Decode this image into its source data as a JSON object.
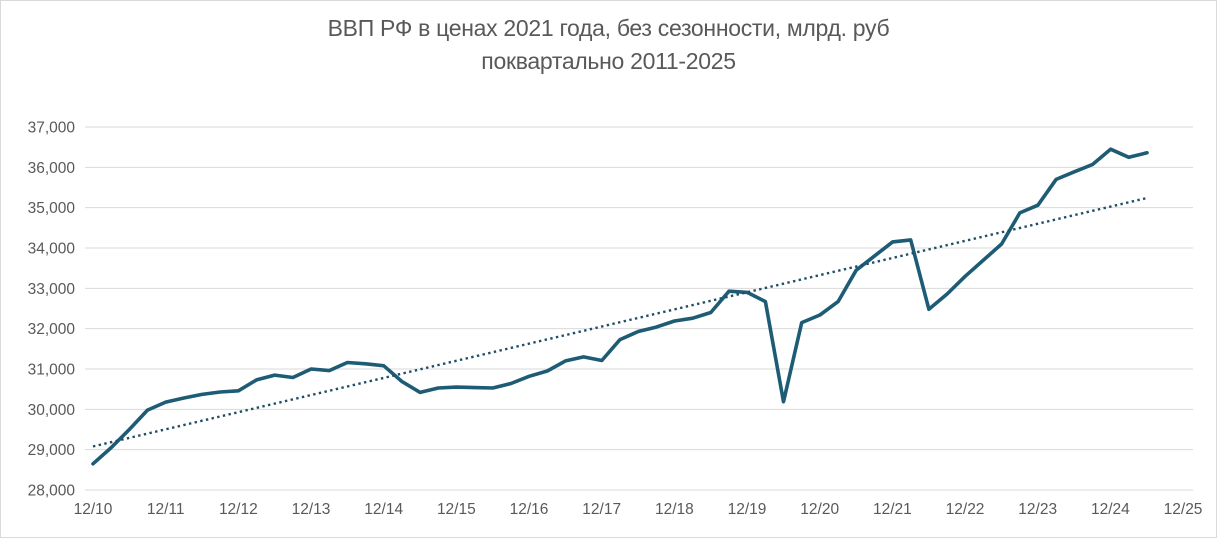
{
  "title": {
    "line1": "ВВП РФ в ценах 2021 года, без сезонности, млрд. руб",
    "line2": "поквартально 2011-2025"
  },
  "chart_data": {
    "type": "line",
    "series_name": "ВВП РФ, млрд. руб. в ценах 2021 года, без сезонности",
    "quarters": [
      "12/10",
      "03/11",
      "06/11",
      "09/11",
      "12/11",
      "03/12",
      "06/12",
      "09/12",
      "12/12",
      "03/13",
      "06/13",
      "09/13",
      "12/13",
      "03/14",
      "06/14",
      "09/14",
      "12/14",
      "03/15",
      "06/15",
      "09/15",
      "12/15",
      "03/16",
      "06/16",
      "09/16",
      "12/16",
      "03/17",
      "06/17",
      "09/17",
      "12/17",
      "03/18",
      "06/18",
      "09/18",
      "12/18",
      "03/19",
      "06/19",
      "09/19",
      "12/19",
      "03/20",
      "06/20",
      "09/20",
      "12/20",
      "03/21",
      "06/21",
      "09/21",
      "12/21",
      "03/22",
      "06/22",
      "09/22",
      "12/22",
      "03/23",
      "06/23",
      "09/23",
      "12/23",
      "03/24",
      "06/24",
      "09/24",
      "12/24",
      "03/25",
      "06/25"
    ],
    "values": [
      28650,
      29050,
      29500,
      29980,
      30180,
      30280,
      30370,
      30430,
      30460,
      30730,
      30850,
      30790,
      31000,
      30960,
      31160,
      31130,
      31080,
      30690,
      30420,
      30530,
      30550,
      30540,
      30530,
      30640,
      30820,
      30950,
      31200,
      31300,
      31210,
      31730,
      31930,
      32040,
      32190,
      32260,
      32400,
      32930,
      32900,
      32670,
      30190,
      32150,
      32340,
      32670,
      33450,
      33800,
      34150,
      34200,
      32480,
      32860,
      33300,
      33700,
      34100,
      34870,
      35060,
      35700,
      35890,
      36070,
      36450,
      36250,
      36360
    ],
    "trendline": {
      "type": "linear",
      "style": "dotted",
      "start_value": 29080,
      "end_value": 35240
    },
    "x_tick_labels": [
      "12/10",
      "12/11",
      "12/12",
      "12/13",
      "12/14",
      "12/15",
      "12/16",
      "12/17",
      "12/18",
      "12/19",
      "12/20",
      "12/21",
      "12/22",
      "12/23",
      "12/24",
      "12/25"
    ],
    "y_tick_labels": [
      "28,000",
      "29,000",
      "30,000",
      "31,000",
      "32,000",
      "33,000",
      "34,000",
      "35,000",
      "36,000",
      "37,000"
    ],
    "ylim": [
      28000,
      37000
    ],
    "y_step": 1000,
    "grid": "horizontal",
    "legend_position": "none",
    "colors": {
      "series_line": "#1E5B75",
      "trendline": "#1F4E66",
      "gridline": "#D9D9D9",
      "axis_labels": "#595959",
      "title": "#595959",
      "background": "#FFFFFF",
      "chart_border": "#D9D9D9"
    }
  }
}
